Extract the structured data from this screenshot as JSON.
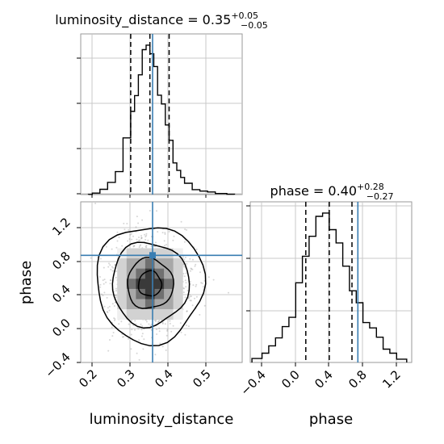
{
  "chart_data": [
    {
      "type": "histogram",
      "panel": "luminosity_distance-marginal",
      "title_prefix": "luminosity_distance = 0.35",
      "title_sup": "+0.05",
      "title_sub": "−0.05",
      "xlim": [
        0.17,
        0.59
      ],
      "bin_edges": [
        0.19,
        0.2,
        0.22,
        0.24,
        0.26,
        0.28,
        0.3,
        0.31,
        0.32,
        0.33,
        0.34,
        0.35,
        0.36,
        0.37,
        0.38,
        0.39,
        0.4,
        0.41,
        0.42,
        0.43,
        0.44,
        0.46,
        0.48,
        0.5,
        0.52,
        0.55,
        0.57
      ],
      "counts": [
        1,
        10,
        36,
        84,
        158,
        390,
        572,
        681,
        824,
        997,
        1028,
        969,
        881,
        684,
        623,
        479,
        373,
        218,
        166,
        118,
        78,
        34,
        24,
        18,
        7,
        2
      ],
      "quantile_lines": [
        0.3,
        0.35,
        0.4
      ],
      "truth": 0.357,
      "grid": true
    },
    {
      "type": "histogram",
      "panel": "phase-marginal",
      "title_prefix": "phase = 0.40",
      "title_sup": "+0.28",
      "title_sub": "−0.27",
      "xlabel": "phase",
      "xticks": [
        "−0.4",
        "0.0",
        "0.4",
        "0.8",
        "1.2"
      ],
      "xtick_values": [
        -0.4,
        0.0,
        0.4,
        0.8,
        1.2
      ],
      "xlim": [
        -0.54,
        1.38
      ],
      "bin_edges": [
        -0.52,
        -0.4,
        -0.32,
        -0.24,
        -0.16,
        -0.08,
        0.0,
        0.08,
        0.16,
        0.24,
        0.32,
        0.4,
        0.48,
        0.56,
        0.64,
        0.72,
        0.8,
        0.88,
        0.96,
        1.04,
        1.12,
        1.2,
        1.32
      ],
      "counts": [
        6,
        14,
        25,
        37,
        54,
        68,
        120,
        160,
        190,
        220,
        225,
        200,
        180,
        145,
        108,
        90,
        60,
        52,
        38,
        20,
        14,
        5
      ],
      "quantile_lines": [
        0.12,
        0.4,
        0.67
      ],
      "truth": 0.74,
      "grid": true
    },
    {
      "type": "scatter-density",
      "panel": "joint-luminosity_distance-phase",
      "xlabel": "luminosity_distance",
      "ylabel": "phase",
      "xticks": [
        "0.2",
        "0.3",
        "0.4",
        "0.5"
      ],
      "xtick_values": [
        0.2,
        0.3,
        0.4,
        0.5
      ],
      "yticks": [
        "−0.4",
        "0.0",
        "0.4",
        "0.8",
        "1.2"
      ],
      "ytick_values": [
        -0.4,
        0.0,
        0.4,
        0.8,
        1.2
      ],
      "xlim": [
        0.17,
        0.59
      ],
      "ylim": [
        -0.54,
        1.38
      ],
      "center": [
        0.35,
        0.4
      ],
      "spread": [
        0.05,
        0.25
      ],
      "contour_widths": [
        0.03,
        0.06,
        0.1,
        0.14
      ],
      "truth": [
        0.357,
        0.74
      ],
      "grid": true
    }
  ]
}
